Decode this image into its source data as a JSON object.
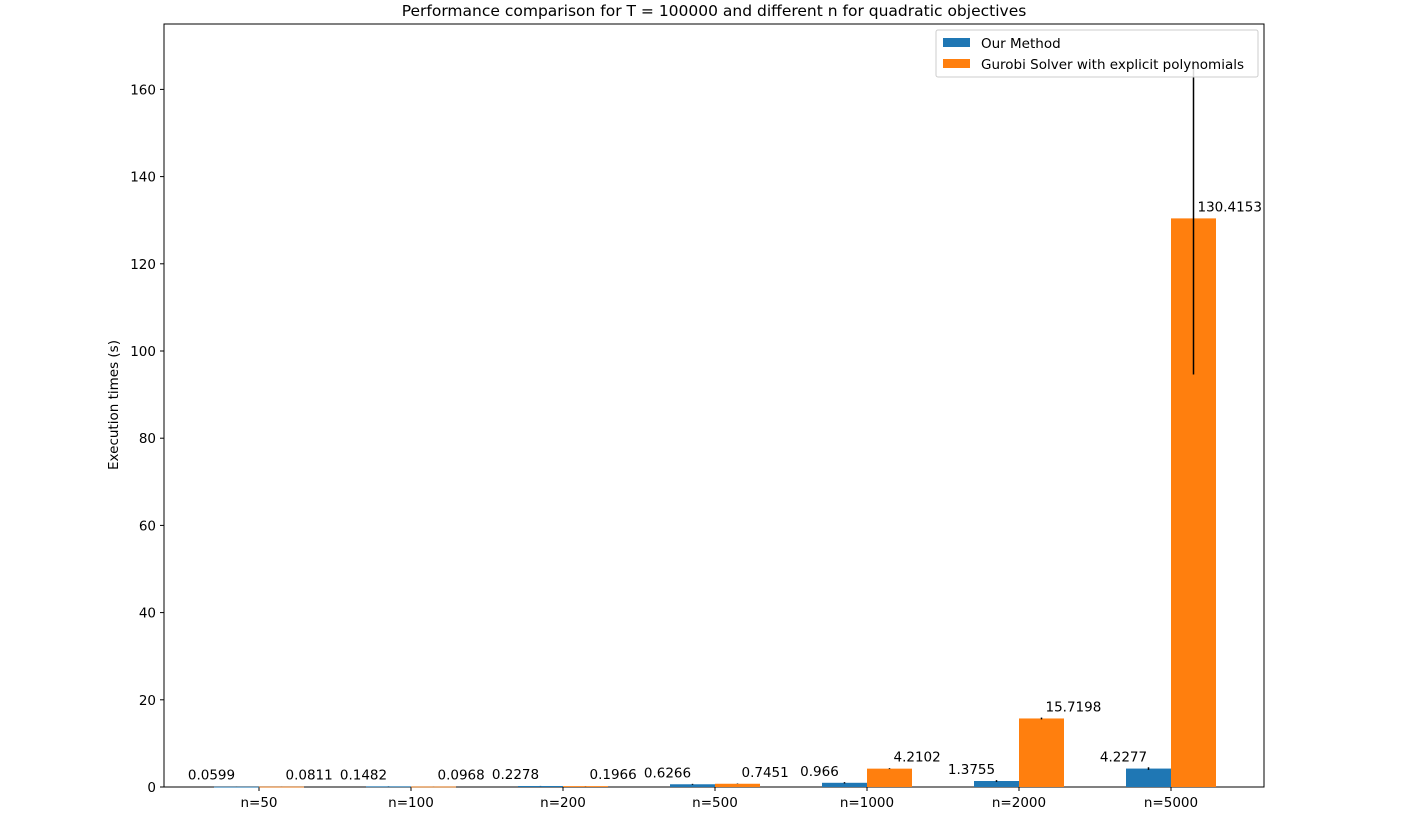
{
  "chart_data": {
    "type": "bar",
    "title": "Performance comparison for T = 100000 and different n for quadratic objectives",
    "xlabel": "",
    "ylabel": "Execution times (s)",
    "ylim": [
      0,
      175
    ],
    "yticks": [
      0,
      20,
      40,
      60,
      80,
      100,
      120,
      140,
      160
    ],
    "categories": [
      "n=50",
      "n=100",
      "n=200",
      "n=500",
      "n=1000",
      "n=2000",
      "n=5000"
    ],
    "series": [
      {
        "name": "Our Method",
        "color": "#1f77b4",
        "values": [
          0.0599,
          0.1482,
          0.2278,
          0.6266,
          0.966,
          1.3755,
          4.2277
        ],
        "labels": [
          "0.0599",
          "0.1482",
          "0.2278",
          "0.6266",
          "0.966",
          "1.3755",
          "4.2277"
        ],
        "error": [
          0.02,
          0.02,
          0.02,
          0.1,
          0.15,
          0.2,
          0.3
        ]
      },
      {
        "name": "Gurobi Solver with explicit polynomials",
        "color": "#ff7f0e",
        "values": [
          0.0811,
          0.0968,
          0.1966,
          0.7451,
          4.2102,
          15.7198,
          130.4153
        ],
        "labels": [
          "0.0811",
          "0.0968",
          "0.1966",
          "0.7451",
          "4.2102",
          "15.7198",
          "130.4153"
        ],
        "error": [
          0.01,
          0.01,
          0.02,
          0.05,
          0.1,
          0.2,
          35.8
        ]
      }
    ],
    "legend": {
      "position": "top-right"
    },
    "grid": false
  }
}
